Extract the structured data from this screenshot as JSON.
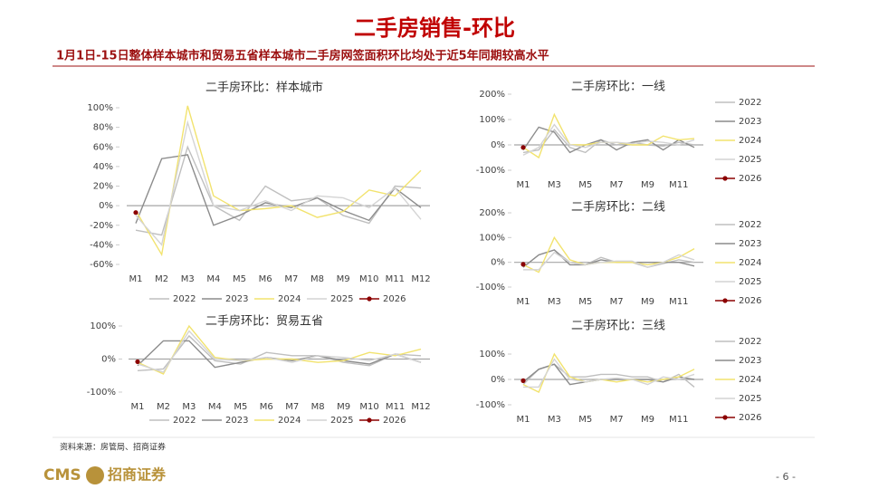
{
  "title": "二手房销售-环比",
  "subtitle": "1月1日-15日整体样本城市和贸易五省样本城市二手房网签面积环比均处于近5年同期较高水平",
  "source": "资料来源：房管局、招商证券",
  "logo": {
    "brand": "CMS",
    "name": "招商证券"
  },
  "page_number": "- 6 -",
  "chart_data": [
    {
      "type": "line",
      "title": "二手房环比：样本城市",
      "legend": "bottom",
      "categories": [
        "M1",
        "M2",
        "M3",
        "M4",
        "M5",
        "M6",
        "M7",
        "M8",
        "M9",
        "M10",
        "M11",
        "M12"
      ],
      "ylim": [
        -60,
        100
      ],
      "yticks": [
        {
          "value": -60,
          "label": "-60%"
        },
        {
          "value": -40,
          "label": "-40%"
        },
        {
          "value": -20,
          "label": "-20%"
        },
        {
          "value": 0,
          "label": "0%"
        },
        {
          "value": 20,
          "label": "20%"
        },
        {
          "value": 40,
          "label": "40%"
        },
        {
          "value": 60,
          "label": "60%"
        },
        {
          "value": 80,
          "label": "80%"
        },
        {
          "value": 100,
          "label": "100%"
        }
      ],
      "series": [
        {
          "name": "2022",
          "color": "#bfbfbf",
          "values": [
            -25,
            -30,
            60,
            0,
            -15,
            20,
            5,
            8,
            -10,
            -18,
            20,
            18
          ]
        },
        {
          "name": "2023",
          "color": "#8c8c8c",
          "values": [
            -18,
            48,
            52,
            -20,
            -10,
            3,
            -2,
            8,
            -5,
            -15,
            18,
            -2
          ]
        },
        {
          "name": "2024",
          "color": "#f2e36e",
          "values": [
            -5,
            -50,
            102,
            10,
            -5,
            -3,
            0,
            -12,
            -6,
            16,
            10,
            36
          ]
        },
        {
          "name": "2025",
          "color": "#d4d4d4",
          "values": [
            -10,
            -40,
            85,
            0,
            -5,
            5,
            -5,
            10,
            8,
            -2,
            18,
            -14
          ]
        },
        {
          "name": "2026",
          "color": "#8b0000",
          "values": [
            -7,
            null,
            null,
            null,
            null,
            null,
            null,
            null,
            null,
            null,
            null,
            null
          ]
        }
      ]
    },
    {
      "type": "line",
      "title": "二手房环比：一线",
      "legend": "right",
      "categories": [
        "M1",
        null,
        "M3",
        null,
        "M5",
        null,
        "M7",
        null,
        "M9",
        null,
        "M11",
        null
      ],
      "ylim": [
        -100,
        200
      ],
      "yticks": [
        {
          "value": -100,
          "label": "-100%"
        },
        {
          "value": 0,
          "label": "0%"
        },
        {
          "value": 100,
          "label": "100%"
        },
        {
          "value": 200,
          "label": "200%"
        }
      ],
      "series": [
        {
          "name": "2022",
          "color": "#bfbfbf",
          "values": [
            -30,
            -20,
            60,
            -10,
            -30,
            20,
            0,
            10,
            0,
            -5,
            10,
            0
          ]
        },
        {
          "name": "2023",
          "color": "#8c8c8c",
          "values": [
            -20,
            70,
            50,
            -30,
            0,
            20,
            -20,
            10,
            20,
            -20,
            20,
            -10
          ]
        },
        {
          "name": "2024",
          "color": "#f2e36e",
          "values": [
            -10,
            -50,
            120,
            0,
            0,
            10,
            10,
            0,
            0,
            35,
            20,
            25
          ]
        },
        {
          "name": "2025",
          "color": "#d4d4d4",
          "values": [
            -40,
            -10,
            80,
            0,
            -10,
            10,
            10,
            5,
            15,
            10,
            0,
            20
          ]
        },
        {
          "name": "2026",
          "color": "#8b0000",
          "values": [
            -10,
            null,
            null,
            null,
            null,
            null,
            null,
            null,
            null,
            null,
            null,
            null
          ]
        }
      ]
    },
    {
      "type": "line",
      "title": "二手房环比：二线",
      "legend": "right",
      "categories": [
        "M1",
        null,
        "M3",
        null,
        "M5",
        null,
        "M7",
        null,
        "M9",
        null,
        "M11",
        null
      ],
      "ylim": [
        -100,
        200
      ],
      "yticks": [
        {
          "value": -100,
          "label": "-100%"
        },
        {
          "value": 0,
          "label": "0%"
        },
        {
          "value": 100,
          "label": "100%"
        },
        {
          "value": 200,
          "label": "200%"
        }
      ],
      "series": [
        {
          "name": "2022",
          "color": "#bfbfbf",
          "values": [
            -20,
            30,
            50,
            0,
            -10,
            20,
            0,
            0,
            -20,
            -5,
            10,
            0
          ]
        },
        {
          "name": "2023",
          "color": "#8c8c8c",
          "values": [
            -20,
            30,
            50,
            -10,
            -10,
            10,
            0,
            0,
            0,
            0,
            0,
            -15
          ]
        },
        {
          "name": "2024",
          "color": "#f2e36e",
          "values": [
            -10,
            -40,
            100,
            10,
            -10,
            0,
            0,
            0,
            -10,
            0,
            20,
            55
          ]
        },
        {
          "name": "2025",
          "color": "#d4d4d4",
          "values": [
            -30,
            -30,
            40,
            0,
            -10,
            0,
            5,
            5,
            -20,
            0,
            30,
            10
          ]
        },
        {
          "name": "2026",
          "color": "#8b0000",
          "values": [
            -8,
            null,
            null,
            null,
            null,
            null,
            null,
            null,
            null,
            null,
            null,
            null
          ]
        }
      ]
    },
    {
      "type": "line",
      "title": "二手房环比：三线",
      "legend": "right",
      "categories": [
        "M1",
        null,
        "M3",
        null,
        "M5",
        null,
        "M7",
        null,
        "M9",
        null,
        "M11",
        null
      ],
      "ylim": [
        -100,
        200
      ],
      "yticks": [
        {
          "value": -100,
          "label": "-100%"
        },
        {
          "value": 0,
          "label": "0%"
        },
        {
          "value": 100,
          "label": "100%"
        }
      ],
      "series": [
        {
          "name": "2022",
          "color": "#bfbfbf",
          "values": [
            -20,
            40,
            60,
            10,
            10,
            20,
            20,
            10,
            10,
            -10,
            20,
            -30
          ]
        },
        {
          "name": "2023",
          "color": "#8c8c8c",
          "values": [
            -10,
            40,
            60,
            -20,
            -10,
            0,
            0,
            0,
            0,
            -10,
            10,
            0
          ]
        },
        {
          "name": "2024",
          "color": "#f2e36e",
          "values": [
            -20,
            -50,
            100,
            10,
            -10,
            0,
            -10,
            0,
            -10,
            0,
            10,
            40
          ]
        },
        {
          "name": "2025",
          "color": "#d4d4d4",
          "values": [
            -30,
            -30,
            80,
            0,
            -10,
            0,
            5,
            0,
            -20,
            10,
            0,
            20
          ]
        },
        {
          "name": "2026",
          "color": "#8b0000",
          "values": [
            -5,
            null,
            null,
            null,
            null,
            null,
            null,
            null,
            null,
            null,
            null,
            null
          ]
        }
      ]
    },
    {
      "type": "line",
      "title": "二手房环比：贸易五省",
      "legend": "bottom",
      "categories": [
        "M1",
        "M2",
        "M3",
        "M4",
        "M5",
        "M6",
        "M7",
        "M8",
        "M9",
        "M10",
        "M11",
        "M12"
      ],
      "ylim": [
        -100,
        100
      ],
      "yticks": [
        {
          "value": -100,
          "label": "-100%"
        },
        {
          "value": 0,
          "label": "0%"
        },
        {
          "value": 100,
          "label": "100%"
        }
      ],
      "series": [
        {
          "name": "2022",
          "color": "#bfbfbf",
          "values": [
            -35,
            -30,
            70,
            -5,
            -15,
            20,
            10,
            10,
            -10,
            -20,
            15,
            10
          ]
        },
        {
          "name": "2023",
          "color": "#8c8c8c",
          "values": [
            -20,
            55,
            55,
            -25,
            -10,
            5,
            -5,
            10,
            -5,
            -15,
            15,
            -10
          ]
        },
        {
          "name": "2024",
          "color": "#f2e36e",
          "values": [
            -10,
            -45,
            100,
            5,
            -5,
            0,
            0,
            -10,
            -5,
            20,
            10,
            30
          ]
        },
        {
          "name": "2025",
          "color": "#d4d4d4",
          "values": [
            -15,
            -40,
            85,
            0,
            -5,
            5,
            -10,
            10,
            5,
            -5,
            15,
            -10
          ]
        },
        {
          "name": "2026",
          "color": "#8b0000",
          "values": [
            -8,
            null,
            null,
            null,
            null,
            null,
            null,
            null,
            null,
            null,
            null,
            null
          ]
        }
      ]
    }
  ]
}
